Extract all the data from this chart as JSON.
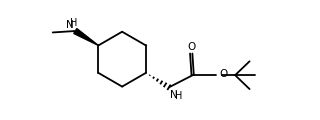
{
  "bg_color": "#ffffff",
  "line_color": "#000000",
  "line_width": 1.3,
  "fig_width": 3.2,
  "fig_height": 1.2,
  "dpi": 100,
  "xlim": [
    0.0,
    8.5
  ],
  "ylim": [
    0.2,
    3.4
  ]
}
